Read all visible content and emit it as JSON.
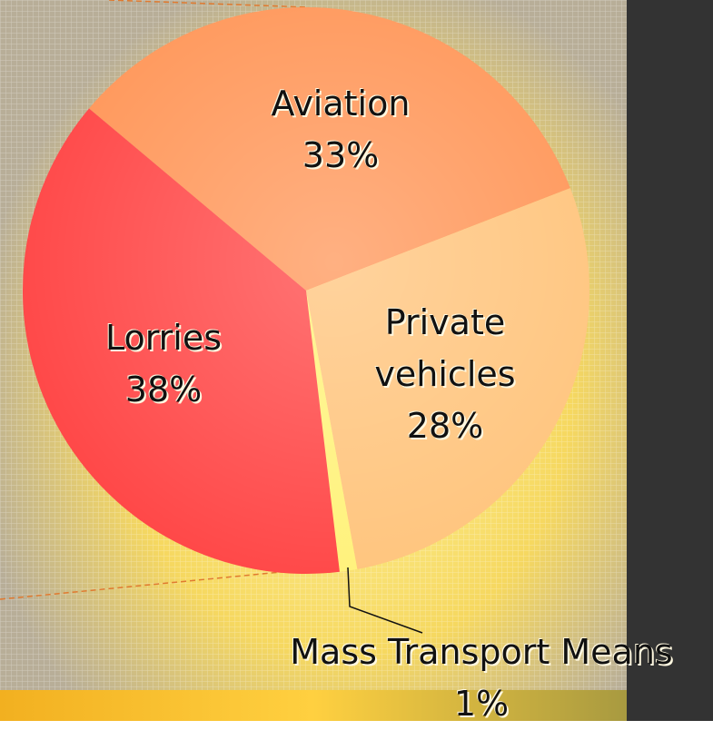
{
  "chart_data": {
    "type": "pie",
    "categories": [
      "Aviation",
      "Private vehicles",
      "Mass Transport Means",
      "Lorries"
    ],
    "values": [
      33,
      28,
      1,
      38
    ],
    "value_labels": [
      "33%",
      "28%",
      "1%",
      "38%"
    ],
    "colors": [
      "#ff9658",
      "#ffc47c",
      "#fff27a",
      "#ff4646"
    ]
  }
}
